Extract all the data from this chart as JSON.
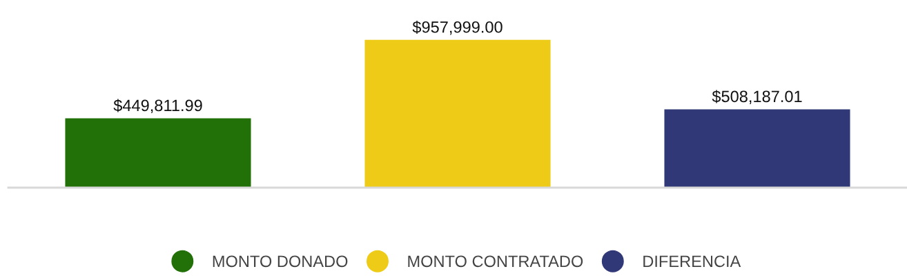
{
  "chart_data": {
    "type": "bar",
    "categories": [
      null,
      null,
      null
    ],
    "series": [
      {
        "name": "MONTO DONADO",
        "color": "#227008",
        "values": [
          449811.99,
          null,
          null
        ],
        "value_labels": [
          "$449,811.99",
          null,
          null
        ]
      },
      {
        "name": "MONTO CONTRATADO",
        "color": "#eecb17",
        "values": [
          null,
          957999.0,
          null
        ],
        "value_labels": [
          null,
          "$957,999.00",
          null
        ]
      },
      {
        "name": "DIFERENCIA",
        "color": "#303877",
        "values": [
          null,
          null,
          508187.01
        ],
        "value_labels": [
          null,
          null,
          "$508,187.01"
        ]
      }
    ],
    "stacked": true,
    "legend": "bottom",
    "grid": false,
    "tick_labels": false
  }
}
